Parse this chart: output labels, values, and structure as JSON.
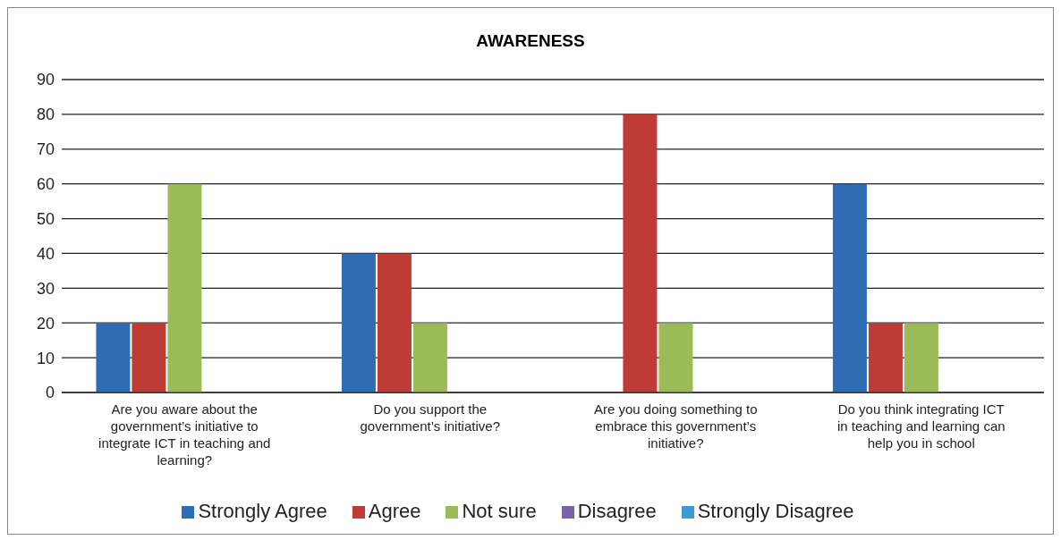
{
  "chart_data": {
    "type": "bar",
    "title": "AWARENESS",
    "categories": [
      "Are you aware about the government’s initiative to integrate ICT in teaching and learning?",
      "Do you support the government’s initiative?",
      "Are you doing something to embrace this government’s initiative?",
      "Do you think integrating ICT in teaching and learning can help you in school"
    ],
    "series": [
      {
        "name": "Strongly Agree",
        "color": "#2e6db4",
        "values": [
          20,
          40,
          0,
          60
        ]
      },
      {
        "name": "Agree",
        "color": "#be3b36",
        "values": [
          20,
          40,
          80,
          20
        ]
      },
      {
        "name": "Not sure",
        "color": "#9bbb59",
        "values": [
          60,
          20,
          20,
          20
        ]
      },
      {
        "name": "Disagree",
        "color": "#7e62a8",
        "values": [
          0,
          0,
          0,
          0
        ]
      },
      {
        "name": "Strongly Disagree",
        "color": "#3d9bd3",
        "values": [
          0,
          0,
          0,
          0
        ]
      }
    ],
    "ylim": [
      0,
      90
    ],
    "yticks": [
      0,
      10,
      20,
      30,
      40,
      50,
      60,
      70,
      80,
      90
    ],
    "grid": "y",
    "legend": "bottom"
  }
}
